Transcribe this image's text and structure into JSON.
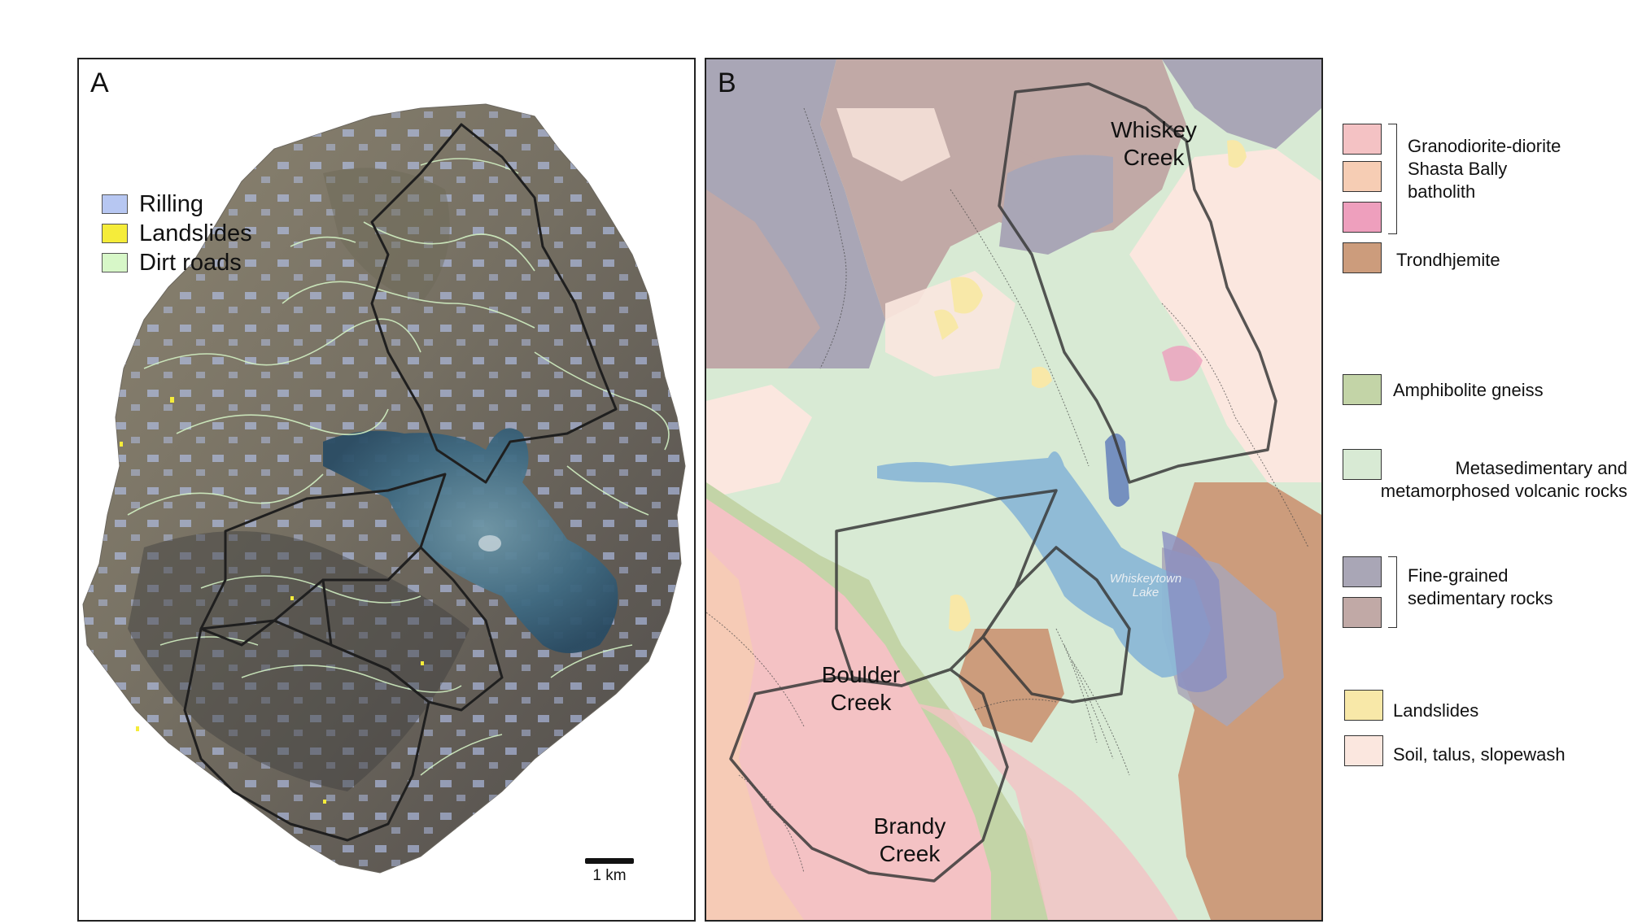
{
  "panel_a": {
    "letter": "A",
    "legend": [
      {
        "label": "Rilling",
        "color": "#b7c7f2"
      },
      {
        "label": "Landslides",
        "color": "#f5ec3a"
      },
      {
        "label": "Dirt roads",
        "color": "#d7f7c8"
      }
    ],
    "scale_label": "1 km"
  },
  "panel_b": {
    "letter": "B",
    "creeks": {
      "whiskey": "Whiskey\nCreek",
      "boulder": "Boulder\nCreek",
      "brandy": "Brandy\nCreek"
    },
    "lake_label": "Whiskeytown\nLake"
  },
  "geology_legend": [
    {
      "label": "Granodiorite-diorite\nShasta Bally\nbatholith",
      "colors": [
        "#f4c2c4",
        "#f6cdb4",
        "#ee9fbd"
      ]
    },
    {
      "label": "Trondhjemite",
      "colors": [
        "#cc9c7c"
      ]
    },
    {
      "label": "Amphibolite gneiss",
      "colors": [
        "#c3d4a7"
      ]
    },
    {
      "label": "Metasedimentary and\nmetamorphosed volcanic rocks",
      "colors": [
        "#d8ead4"
      ]
    },
    {
      "label": "Fine-grained\nsedimentary rocks",
      "colors": [
        "#a9a6b6",
        "#c1a9a6"
      ]
    },
    {
      "label": "Landslides",
      "colors": [
        "#f8e8a8"
      ]
    },
    {
      "label": "Soil, talus, slopewash",
      "colors": [
        "#fbe7df"
      ]
    }
  ]
}
